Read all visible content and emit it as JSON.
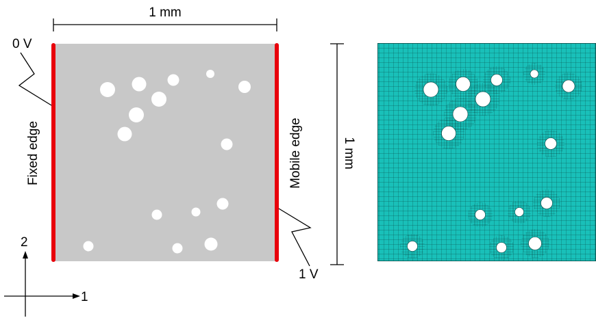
{
  "left_panel": {
    "width_label": "1 mm",
    "fixed_edge_label": "Fixed  edge",
    "mobile_edge_label": "Mobile  edge",
    "fixed_voltage": "0 V",
    "mobile_voltage": "1 V",
    "electrode_color": "#e8000b",
    "domain_color": "#c8c8c8",
    "pore_color": "#ffffff"
  },
  "right_panel": {
    "height_label": "1 mm",
    "mesh_color": "#19c0b9",
    "mesh_line_color": "#08403d"
  },
  "axes": {
    "axis_1_label": "1",
    "axis_2_label": "2"
  }
}
